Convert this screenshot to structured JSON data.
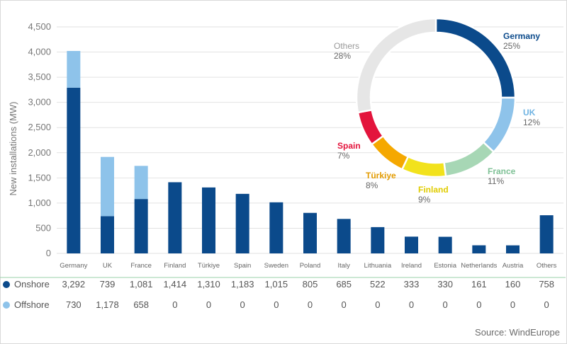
{
  "chart_data": [
    {
      "type": "bar",
      "stacked": true,
      "ylabel": "New installations (MW)",
      "ylim": [
        0,
        4500
      ],
      "yticks": [
        "0",
        "500",
        "1,000",
        "1,500",
        "2,000",
        "2,500",
        "3,000",
        "3,500",
        "4,000",
        "4,500"
      ],
      "categories": [
        "Germany",
        "UK",
        "France",
        "Finland",
        "Türkiye",
        "Spain",
        "Sweden",
        "Poland",
        "Italy",
        "Lithuania",
        "Ireland",
        "Estonia",
        "Netherlands",
        "Austria",
        "Others"
      ],
      "series": [
        {
          "name": "Onshore",
          "color": "#0b4a8b",
          "values": [
            3292,
            739,
            1081,
            1414,
            1310,
            1183,
            1015,
            805,
            685,
            522,
            333,
            330,
            161,
            160,
            758
          ],
          "labels": [
            "3,292",
            "739",
            "1,081",
            "1,414",
            "1,310",
            "1,183",
            "1,015",
            "805",
            "685",
            "522",
            "333",
            "330",
            "161",
            "160",
            "758"
          ]
        },
        {
          "name": "Offshore",
          "color": "#8ec3ea",
          "values": [
            730,
            1178,
            658,
            0,
            0,
            0,
            0,
            0,
            0,
            0,
            0,
            0,
            0,
            0,
            0
          ],
          "labels": [
            "730",
            "1,178",
            "658",
            "0",
            "0",
            "0",
            "0",
            "0",
            "0",
            "0",
            "0",
            "0",
            "0",
            "0",
            "0"
          ]
        }
      ],
      "grid": true,
      "table_below": true
    },
    {
      "type": "pie",
      "donut": true,
      "slices": [
        {
          "name": "Germany",
          "value": 25,
          "label": "25%",
          "color": "#0b4a8b"
        },
        {
          "name": "UK",
          "value": 12,
          "label": "12%",
          "color": "#8ec3ea"
        },
        {
          "name": "France",
          "value": 11,
          "label": "11%",
          "color": "#a7d7b5"
        },
        {
          "name": "Finland",
          "value": 9,
          "label": "9%",
          "color": "#f2e21c"
        },
        {
          "name": "Türkiye",
          "value": 8,
          "label": "8%",
          "color": "#f5a800"
        },
        {
          "name": "Spain",
          "value": 7,
          "label": "7%",
          "color": "#e3143c"
        },
        {
          "name": "Others",
          "value": 28,
          "label": "28%",
          "color": "#e6e6e6"
        }
      ]
    }
  ],
  "source": "Source: WindEurope"
}
